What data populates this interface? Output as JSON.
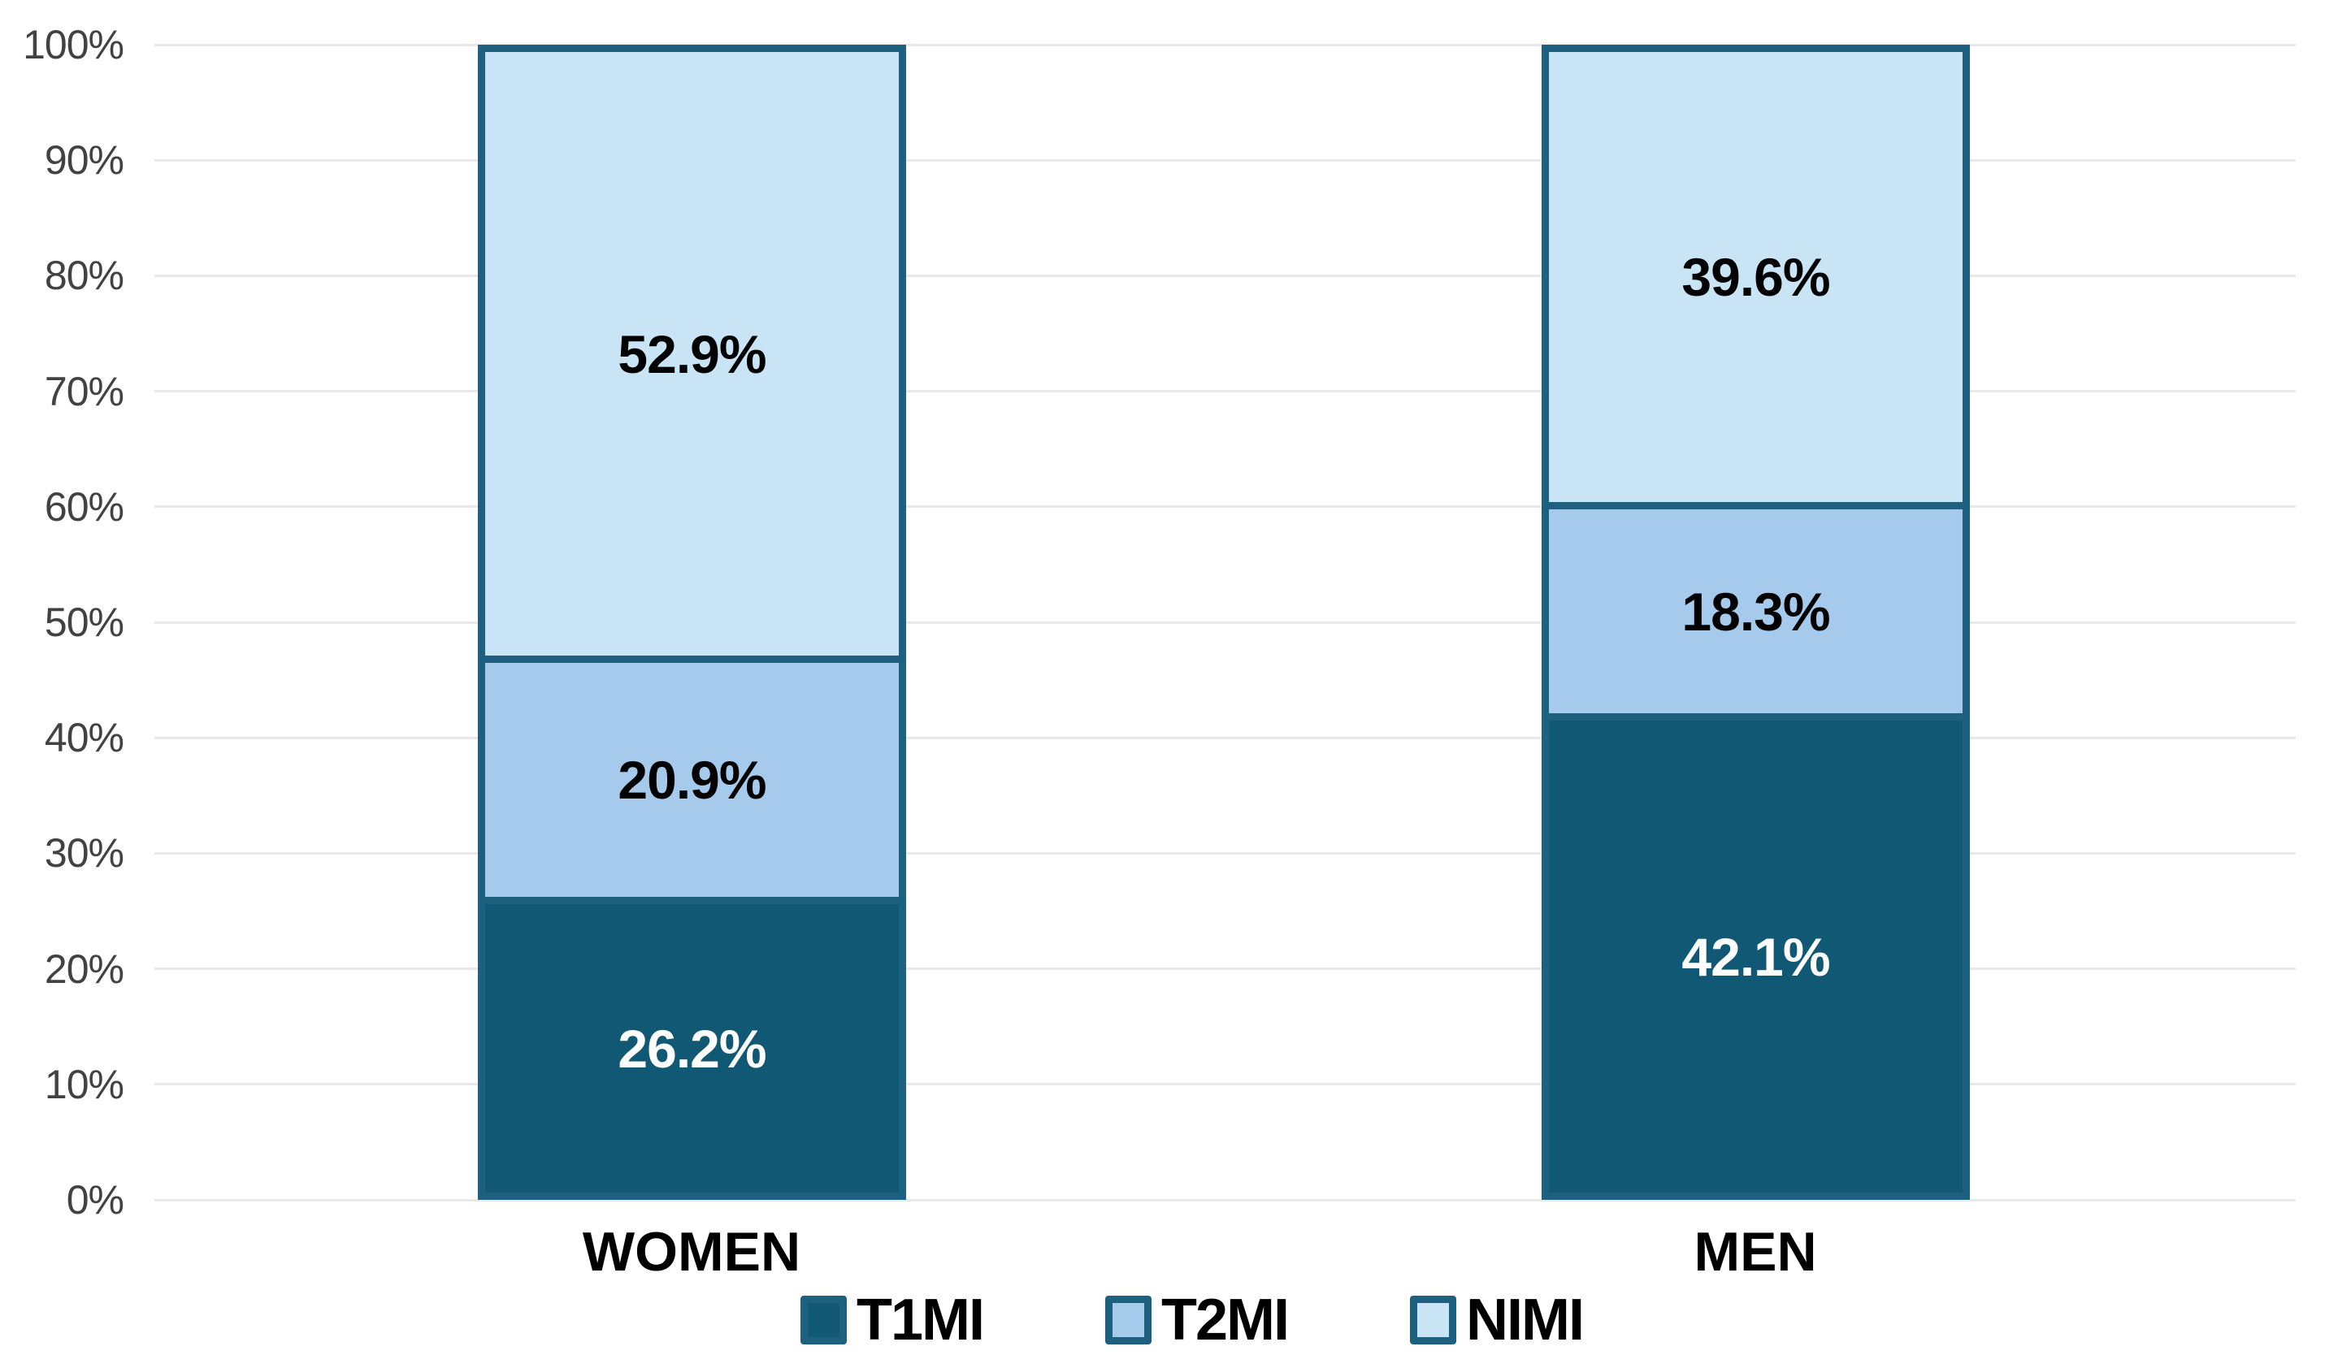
{
  "chart_data": {
    "type": "bar",
    "stacked": true,
    "orientation": "vertical",
    "title": "",
    "xlabel": "",
    "ylabel": "",
    "categories": [
      "WOMEN",
      "MEN"
    ],
    "series": [
      {
        "name": "T1MI",
        "values": [
          26.2,
          42.1
        ],
        "fill": "#105873",
        "border": "#1d6080",
        "value_label_color": "#ffffff"
      },
      {
        "name": "T2MI",
        "values": [
          20.9,
          18.3
        ],
        "fill": "#a6caeb",
        "border": "#1d6080",
        "value_label_color": "#000000"
      },
      {
        "name": "NIMI",
        "values": [
          52.9,
          39.6
        ],
        "fill": "#c9e5f5",
        "border": "#1d6080",
        "value_label_color": "#000000"
      }
    ],
    "value_label_format": "{value}%",
    "y_axis": {
      "range": [
        0,
        100
      ],
      "ticks": [
        0,
        10,
        20,
        30,
        40,
        50,
        60,
        70,
        80,
        90,
        100
      ],
      "tick_label_format": "{value}%",
      "tick_color": "#424242"
    },
    "grid": {
      "show": true,
      "color": "#e8e8e8"
    },
    "legend": {
      "position": "bottom",
      "entries": [
        "T1MI",
        "T2MI",
        "NIMI"
      ]
    },
    "background": "#ffffff"
  }
}
